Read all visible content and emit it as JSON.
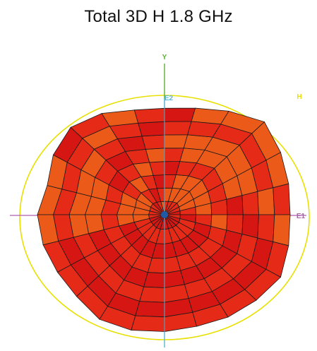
{
  "title": "Total 3D H 1.8 GHz",
  "axes": {
    "vertical_label": "Y",
    "vertical_inner_label": "E2",
    "horizontal_label": "E1",
    "ring_label": "H"
  },
  "colors": {
    "vertical_axis_top": "#5cb132",
    "vertical_axis_bottom": "#5ab4d6",
    "horizontal_axis": "#b05db0",
    "ring": "#e8e000",
    "grid_line": "#1a1a1a",
    "center_marker": "#1f5aa8",
    "lobe_dark_red": "#d51612",
    "lobe_red": "#e52a18",
    "lobe_orange": "#ec5a1a"
  }
}
